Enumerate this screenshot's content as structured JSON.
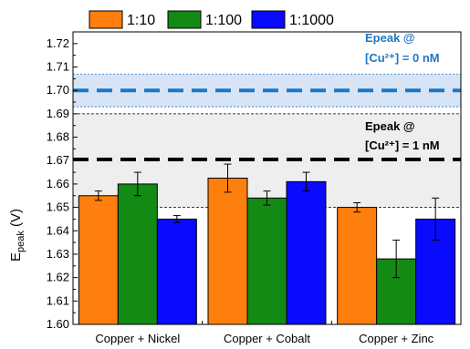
{
  "chart_data": {
    "type": "bar",
    "categories": [
      "Copper + Nickel",
      "Copper + Cobalt",
      "Copper + Zinc"
    ],
    "series": [
      {
        "name": "1:10",
        "color": "#ff7f0e",
        "values": [
          1.655,
          1.6625,
          1.65
        ],
        "errors": [
          0.002,
          0.006,
          0.002
        ]
      },
      {
        "name": "1:100",
        "color": "#138a13",
        "values": [
          1.66,
          1.654,
          1.628
        ],
        "errors": [
          0.005,
          0.003,
          0.008
        ]
      },
      {
        "name": "1:1000",
        "color": "#0a0aff",
        "values": [
          1.645,
          1.661,
          1.645
        ],
        "errors": [
          0.0015,
          0.004,
          0.009
        ]
      }
    ],
    "ylim": [
      1.6,
      1.725
    ],
    "yticks": [
      "1.60",
      "1.61",
      "1.62",
      "1.63",
      "1.64",
      "1.65",
      "1.66",
      "1.67",
      "1.68",
      "1.69",
      "1.70",
      "1.71",
      "1.72"
    ],
    "ylabel": {
      "main": "E",
      "sub": "peak",
      "unit": " (V)"
    },
    "legend_position": "top",
    "reference_lines": [
      {
        "label_line1": "Epeak @",
        "label_line2": "[Cu²⁺] = 0 nM",
        "value": 1.7,
        "band": [
          1.693,
          1.707
        ],
        "color": "#1f77c4",
        "band_color": "#d6e4f5"
      },
      {
        "label_line1": "Epeak @",
        "label_line2": "[Cu²⁺] = 1 nM",
        "value": 1.6705,
        "band": [
          1.65,
          1.69
        ],
        "color": "#000000",
        "band_color": "#eeeeee"
      }
    ],
    "grid": false
  }
}
